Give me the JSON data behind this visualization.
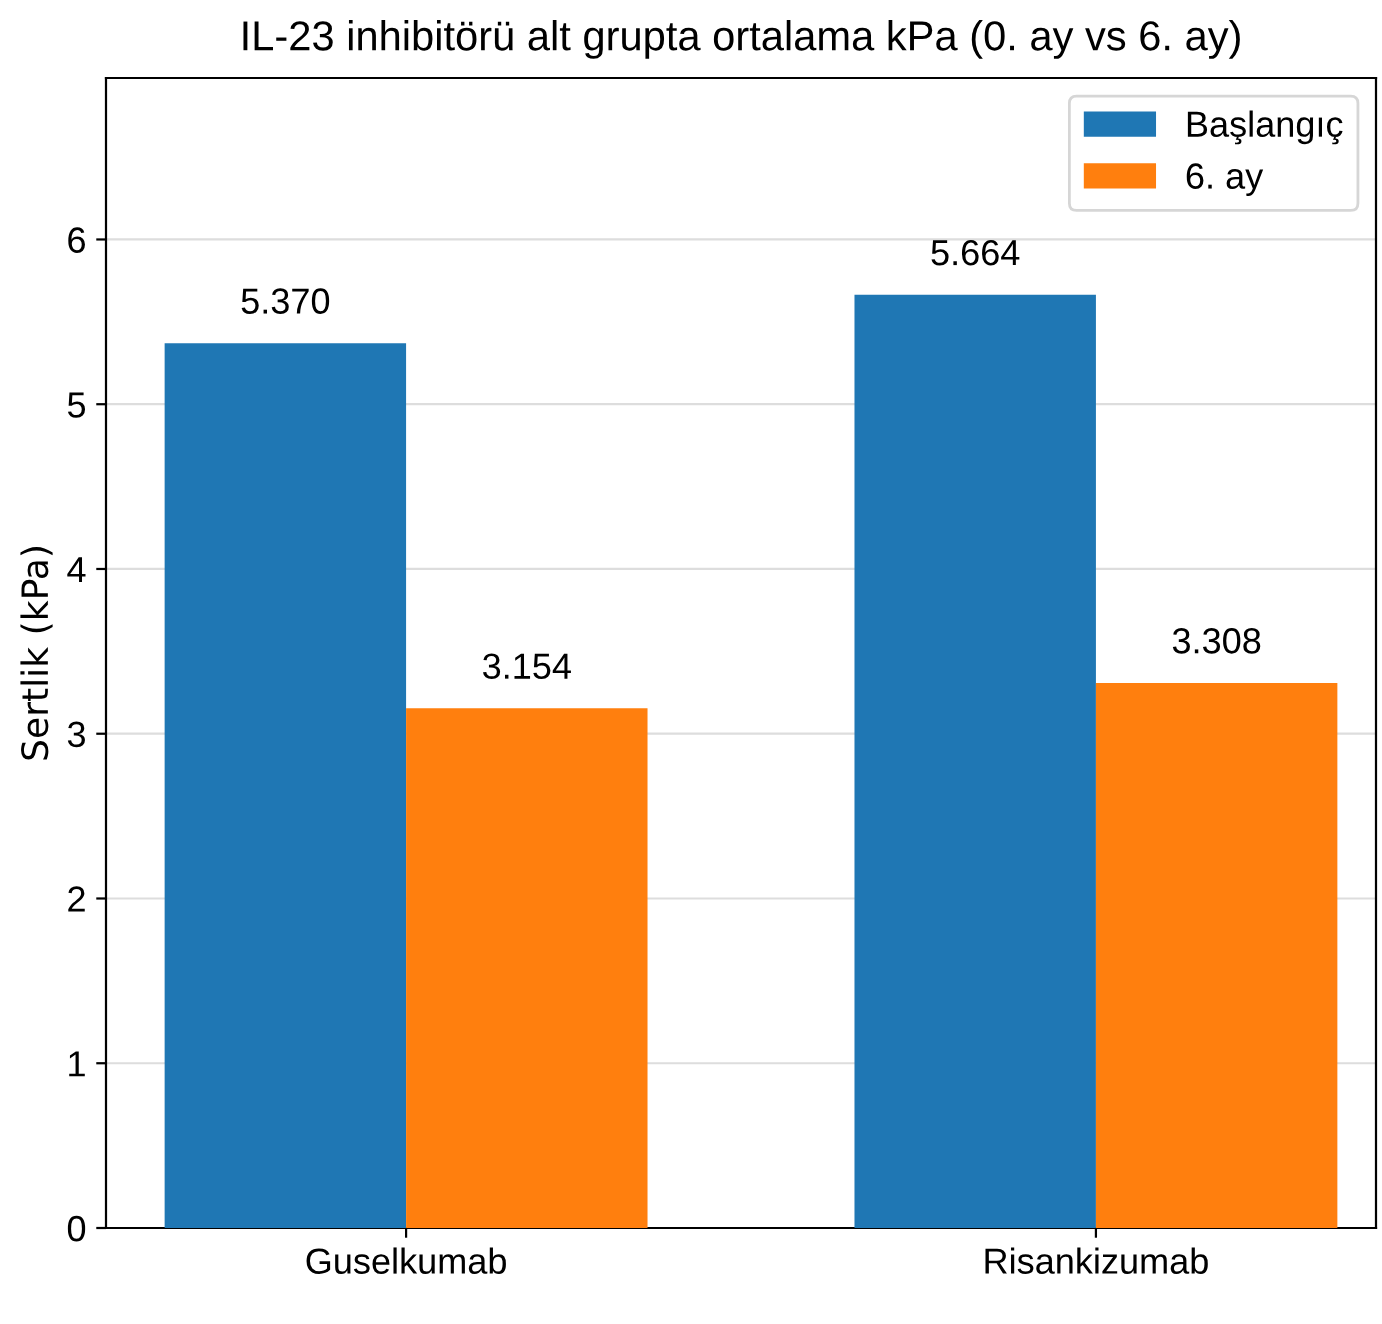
{
  "chart_data": {
    "type": "bar",
    "title": "IL-23 inhibitörü alt grupta ortalama kPa (0. ay vs 6. ay)",
    "ylabel": "Sertlik (kPa)",
    "categories": [
      "Guselkumab",
      "Risankizumab"
    ],
    "series": [
      {
        "name": "Başlangıç",
        "color": "#1f77b4",
        "values": [
          5.37,
          5.664
        ],
        "value_labels": [
          "5.370",
          "5.664"
        ]
      },
      {
        "name": "6. ay",
        "color": "#ff7f0e",
        "values": [
          3.154,
          3.308
        ],
        "value_labels": [
          "3.154",
          "3.308"
        ]
      }
    ],
    "ylim": [
      0,
      6.98
    ],
    "yticks": [
      0,
      1,
      2,
      3,
      4,
      5,
      6
    ],
    "grid": "y",
    "legend": "top right"
  }
}
